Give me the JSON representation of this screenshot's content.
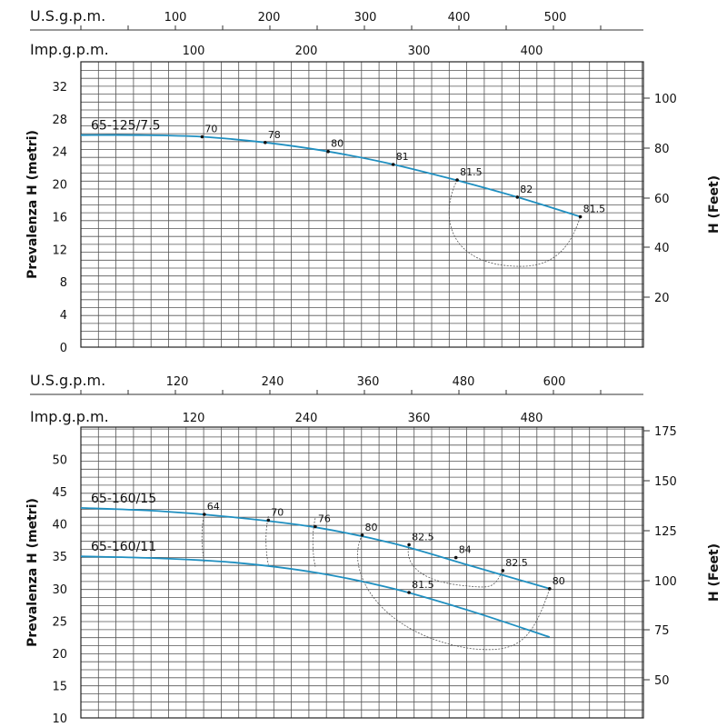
{
  "colors": {
    "curve": "#1f8fc0",
    "grid": "#555555",
    "text": "#111111"
  },
  "chart_data": [
    {
      "type": "line",
      "id": "chart1",
      "title": "",
      "xlabel": "",
      "ylabel": "Prevalenza H (metri)",
      "ylabel_right": "H (Feet)",
      "scale_us_label": "U.S.g.p.m.",
      "scale_imp_label": "Imp.g.p.m.",
      "ylim": [
        0,
        35
      ],
      "yticks": [
        0,
        4,
        8,
        12,
        16,
        20,
        24,
        28,
        32
      ],
      "y_right_ticks": [
        20,
        40,
        60,
        80,
        100
      ],
      "x_us_ticks": [
        100,
        200,
        300,
        400,
        500
      ],
      "x_imp_ticks": [
        100,
        200,
        300,
        400
      ],
      "x_unit": "US gpm",
      "xlim": [
        0,
        580
      ],
      "grid": true,
      "series": [
        {
          "name": "65-125/7.5",
          "x": [
            0,
            60,
            125,
            190,
            250,
            315,
            380,
            450,
            515
          ],
          "y": [
            26,
            26,
            25.8,
            25.1,
            24.1,
            22.6,
            20.7,
            18.4,
            16
          ]
        }
      ],
      "efficiency_points": [
        {
          "label": "70",
          "x": 125,
          "y": 25.8
        },
        {
          "label": "78",
          "x": 190,
          "y": 25.1
        },
        {
          "label": "80",
          "x": 255,
          "y": 24.0
        },
        {
          "label": "81",
          "x": 322,
          "y": 22.4
        },
        {
          "label": "81.5",
          "x": 388,
          "y": 20.5
        },
        {
          "label": "82",
          "x": 450,
          "y": 18.4
        },
        {
          "label": "81.5",
          "x": 515,
          "y": 16.0
        }
      ]
    },
    {
      "type": "line",
      "id": "chart2",
      "title": "",
      "xlabel": "",
      "ylabel": "Prevalenza H (metri)",
      "ylabel_right": "H (Feet)",
      "scale_us_label": "U.S.g.p.m.",
      "scale_imp_label": "Imp.g.p.m.",
      "ylim": [
        10,
        55
      ],
      "yticks": [
        10,
        15,
        20,
        25,
        30,
        35,
        40,
        45,
        50
      ],
      "y_right_ticks": [
        50,
        75,
        100,
        125,
        150,
        175
      ],
      "x_us_ticks": [
        120,
        240,
        360,
        480,
        600
      ],
      "x_imp_ticks": [
        120,
        240,
        360,
        480
      ],
      "x_unit": "US gpm",
      "xlim": [
        0,
        720
      ],
      "grid": true,
      "series": [
        {
          "name": "65-160/15",
          "x": [
            0,
            100,
            200,
            300,
            400,
            500,
            600
          ],
          "y": [
            42.5,
            42,
            41,
            39.5,
            37,
            33.5,
            30
          ]
        },
        {
          "name": "65-160/11",
          "x": [
            0,
            100,
            200,
            300,
            400,
            500,
            600
          ],
          "y": [
            35,
            34.7,
            34,
            32.5,
            30,
            26.5,
            22.5
          ]
        }
      ],
      "efficiency_points": [
        {
          "label": "64",
          "series": "65-160/15",
          "x": 158,
          "y": 41.5
        },
        {
          "label": "70",
          "series": "65-160/15",
          "x": 240,
          "y": 40.6
        },
        {
          "label": "76",
          "series": "65-160/15",
          "x": 300,
          "y": 39.6
        },
        {
          "label": "80",
          "series": "65-160/15",
          "x": 360,
          "y": 38.3
        },
        {
          "label": "82.5",
          "series": "65-160/15",
          "x": 420,
          "y": 36.8
        },
        {
          "label": "84",
          "series": "65-160/15",
          "x": 480,
          "y": 34.8
        },
        {
          "label": "82.5",
          "series": "65-160/15",
          "x": 540,
          "y": 32.8
        },
        {
          "label": "80",
          "series": "65-160/15",
          "x": 600,
          "y": 30.0
        },
        {
          "label": "81.5",
          "series": "65-160/11",
          "x": 420,
          "y": 29.4
        }
      ]
    }
  ]
}
